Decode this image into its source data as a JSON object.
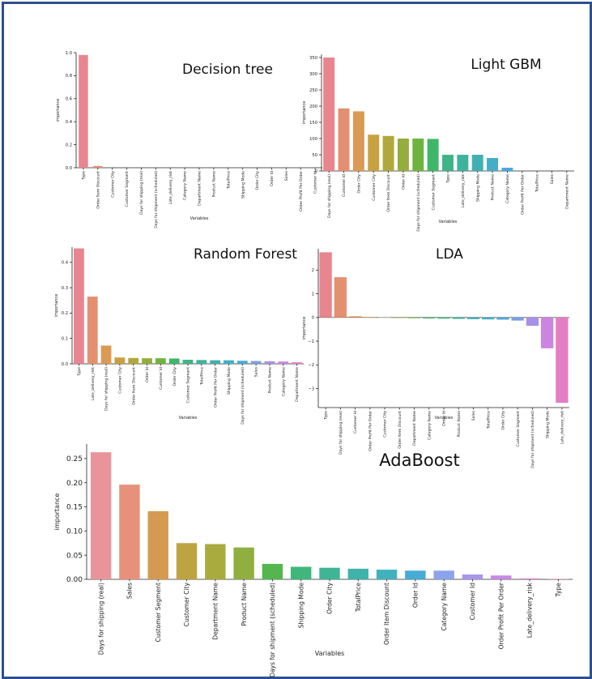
{
  "chart_data": [
    {
      "type": "bar",
      "title": "Decision tree",
      "xlabel": "Variables",
      "ylabel": "importance",
      "ylim": [
        0,
        1.0
      ],
      "yticks": [
        "0.0",
        "0.2",
        "0.4",
        "0.6",
        "0.8",
        "1.0"
      ],
      "yticks_values": [
        0,
        0.2,
        0.4,
        0.6,
        0.8,
        1.0
      ],
      "categories": [
        "Type",
        "Order Item Discount",
        "Customer City",
        "Customer Segment",
        "Days for shipping (real)",
        "Days for shipment (scheduled)",
        "Late_delivery_risk",
        "Category Name",
        "Department Name",
        "Product Name",
        "TotalPrice",
        "Shipping Mode",
        "Order City",
        "Order Id",
        "Sales",
        "Order Profit Per Order",
        "Customer Id"
      ],
      "values": [
        0.98,
        0.015,
        0,
        0,
        0,
        0,
        0,
        0,
        0,
        0,
        0,
        0,
        0,
        0,
        0,
        0,
        0
      ],
      "colors": [
        "#e8858e",
        "#e49070",
        "#d99a55",
        "#c8a040",
        "#b1a83c",
        "#95ad3d",
        "#6fb33f",
        "#40b668",
        "#3fb487",
        "#3fb29d",
        "#41b0b0",
        "#43aec6",
        "#4aa8dc",
        "#7b9ee6",
        "#a891e6",
        "#cd84e0",
        "#e47ec4"
      ]
    },
    {
      "type": "bar",
      "title": "Light GBM",
      "xlabel": "Variables",
      "ylabel": "importance",
      "ylim": [
        0,
        360
      ],
      "yticks": [
        "0",
        "50",
        "100",
        "150",
        "200",
        "250",
        "300",
        "350"
      ],
      "yticks_values": [
        0,
        50,
        100,
        150,
        200,
        250,
        300,
        350
      ],
      "categories": [
        "Days for shipping (real)",
        "Customer Id",
        "Order City",
        "Customer City",
        "Order Item Discount",
        "Order Id",
        "Days for shipment (scheduled)",
        "Customer Segment",
        "Type",
        "Late_delivery_risk",
        "Shipping Mode",
        "Product Name",
        "Category Name",
        "Order Profit Per Order",
        "TotalPrice",
        "Sales",
        "Department Name"
      ],
      "values": [
        350,
        193,
        184,
        112,
        108,
        100,
        100,
        99,
        50,
        50,
        50,
        40,
        10,
        0,
        0,
        0,
        0
      ],
      "colors": [
        "#e8858e",
        "#e49070",
        "#d99a55",
        "#c8a040",
        "#b1a83c",
        "#95ad3d",
        "#6fb33f",
        "#40b668",
        "#3fb487",
        "#3fb29d",
        "#41b0b0",
        "#43aec6",
        "#4aa8dc",
        "#7b9ee6",
        "#a891e6",
        "#cd84e0",
        "#e47ec4"
      ]
    },
    {
      "type": "bar",
      "title": "Random Forest",
      "xlabel": "Variables",
      "ylabel": "importance",
      "ylim": [
        0,
        0.46
      ],
      "yticks": [
        "0.0",
        "0.1",
        "0.2",
        "0.3",
        "0.4"
      ],
      "yticks_values": [
        0,
        0.1,
        0.2,
        0.3,
        0.4
      ],
      "categories": [
        "Type",
        "Late_delivery_risk",
        "Days for shipping (real)",
        "Customer City",
        "Order Item Discount",
        "Order Id",
        "Customer Id",
        "Order City",
        "Customer Segment",
        "TotalPrice",
        "Order Profit Per Order",
        "Shipping Mode",
        "Days for shipment (scheduled)",
        "Sales",
        "Product Name",
        "Category Name",
        "Department Name"
      ],
      "values": [
        0.455,
        0.265,
        0.072,
        0.025,
        0.023,
        0.022,
        0.022,
        0.021,
        0.016,
        0.015,
        0.014,
        0.014,
        0.012,
        0.011,
        0.01,
        0.009,
        0.006
      ],
      "colors": [
        "#e8858e",
        "#e49070",
        "#d99a55",
        "#c8a040",
        "#b1a83c",
        "#95ad3d",
        "#6fb33f",
        "#40b668",
        "#3fb487",
        "#3fb29d",
        "#41b0b0",
        "#43aec6",
        "#4aa8dc",
        "#7b9ee6",
        "#a891e6",
        "#cd84e0",
        "#e47ec4"
      ]
    },
    {
      "type": "bar",
      "title": "LDA",
      "xlabel": "Variables",
      "ylabel": "importance",
      "ylim": [
        -3.8,
        2.9
      ],
      "yticks": [
        "−3",
        "−2",
        "−1",
        "0",
        "1",
        "2"
      ],
      "yticks_values": [
        -3,
        -2,
        -1,
        0,
        1,
        2
      ],
      "categories": [
        "Type",
        "Days for shipping (real)",
        "Customer Id",
        "Order Profit Per Order",
        "Customer City",
        "Order Item Discount",
        "Department Name",
        "Category Name",
        "Order Id",
        "Product Name",
        "Sales",
        "TotalPrice",
        "Order City",
        "Customer Segment",
        "Days for shipment (scheduled)",
        "Shipping Mode",
        "Late_delivery_risk"
      ],
      "values": [
        2.75,
        1.7,
        0.05,
        0.02,
        0.01,
        -0.02,
        -0.03,
        -0.04,
        -0.05,
        -0.06,
        -0.07,
        -0.08,
        -0.09,
        -0.13,
        -0.35,
        -1.3,
        -3.6
      ],
      "colors": [
        "#e8858e",
        "#e49070",
        "#d99a55",
        "#c8a040",
        "#b1a83c",
        "#95ad3d",
        "#6fb33f",
        "#40b668",
        "#3fb487",
        "#3fb29d",
        "#41b0b0",
        "#43aec6",
        "#4aa8dc",
        "#7b9ee6",
        "#a891e6",
        "#cd84e0",
        "#e47ec4"
      ]
    },
    {
      "type": "bar",
      "title": "AdaBoost",
      "xlabel": "Variables",
      "ylabel": "importance",
      "ylim": [
        0,
        0.28
      ],
      "yticks": [
        "0.00",
        "0.05",
        "0.10",
        "0.15",
        "0.20",
        "0.25"
      ],
      "yticks_values": [
        0,
        0.05,
        0.1,
        0.15,
        0.2,
        0.25
      ],
      "categories": [
        "Days for shipping (real)",
        "Sales",
        "Customer Segment",
        "Customer City",
        "Department Name",
        "Product Name",
        "Days for shipment (scheduled)",
        "Shipping Mode",
        "Order City",
        "TotalPrice",
        "Order Item Discount",
        "Order Id",
        "Category Name",
        "Customer Id",
        "Order Profit Per Order",
        "Late_delivery_risk",
        "Type"
      ],
      "values": [
        0.263,
        0.196,
        0.141,
        0.075,
        0.073,
        0.066,
        0.032,
        0.026,
        0.024,
        0.022,
        0.02,
        0.018,
        0.018,
        0.01,
        0.008,
        0.002,
        0.001
      ],
      "colors": [
        "#e8949b",
        "#e8917a",
        "#d59a52",
        "#bda440",
        "#a9ab3f",
        "#8fb040",
        "#55b650",
        "#3fb77a",
        "#3fb596",
        "#3fb3aa",
        "#41b1be",
        "#46abd5",
        "#8ba3ea",
        "#a896ea",
        "#c889e6",
        "#e083d6",
        "#eb86b1"
      ]
    }
  ]
}
